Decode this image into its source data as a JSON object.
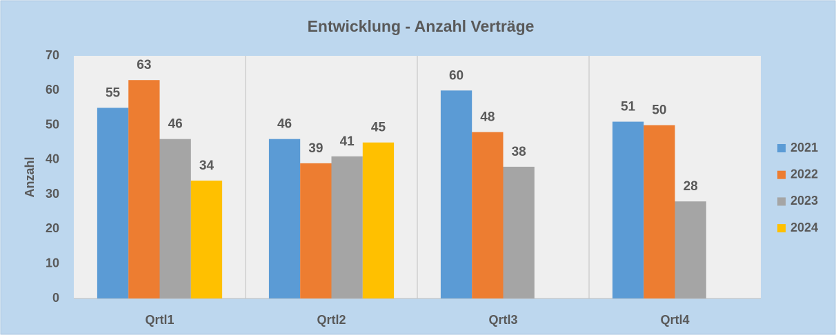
{
  "chart_data": {
    "type": "bar",
    "title": "Entwicklung - Anzahl Verträge",
    "y_label": "Anzahl",
    "categories": [
      "Qrtl1",
      "Qrtl2",
      "Qrtl3",
      "Qrtl4"
    ],
    "series": [
      {
        "name": "2021",
        "color": "#5B9BD5",
        "values": [
          55,
          46,
          60,
          51
        ]
      },
      {
        "name": "2022",
        "color": "#ED7D31",
        "values": [
          63,
          39,
          48,
          50
        ]
      },
      {
        "name": "2023",
        "color": "#A5A5A5",
        "values": [
          46,
          41,
          38,
          28
        ]
      },
      {
        "name": "2024",
        "color": "#FFC000",
        "values": [
          34,
          45,
          null,
          null
        ]
      }
    ],
    "ylim": [
      0,
      70
    ],
    "yticks": [
      0,
      10,
      20,
      30,
      40,
      50,
      60,
      70
    ],
    "grid": false,
    "legend": "right"
  }
}
